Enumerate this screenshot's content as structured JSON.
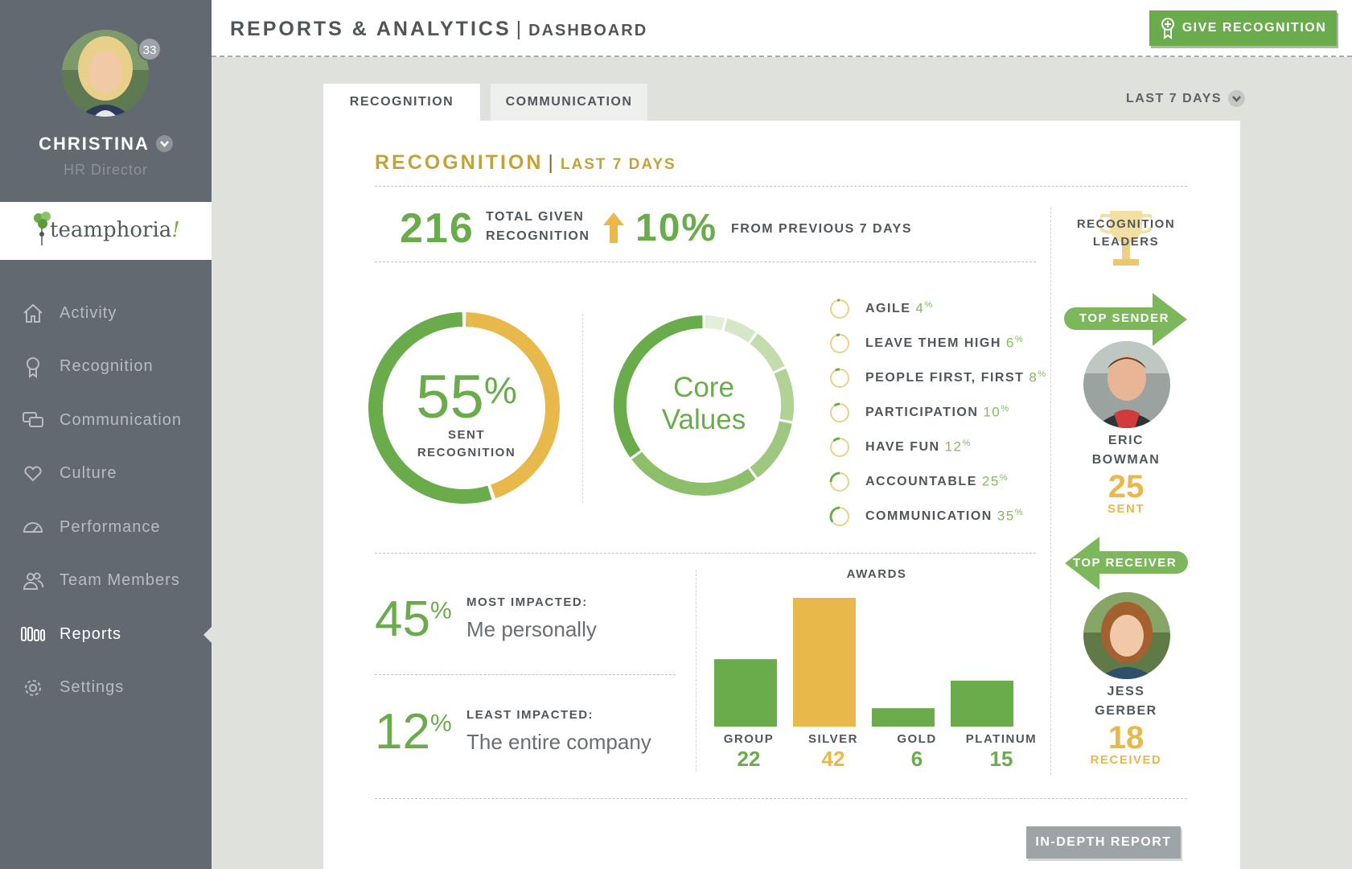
{
  "user": {
    "name": "CHRISTINA",
    "role": "HR Director",
    "notifications": "33"
  },
  "logo": {
    "text": "teamphoria",
    "bang": "!"
  },
  "nav": [
    {
      "label": "Activity",
      "icon": "home-icon"
    },
    {
      "label": "Recognition",
      "icon": "ribbon-icon"
    },
    {
      "label": "Communication",
      "icon": "chat-icon"
    },
    {
      "label": "Culture",
      "icon": "heart-icon"
    },
    {
      "label": "Performance",
      "icon": "gauge-icon"
    },
    {
      "label": "Team Members",
      "icon": "people-icon"
    },
    {
      "label": "Reports",
      "icon": "bars-icon",
      "active": true
    },
    {
      "label": "Settings",
      "icon": "gear-icon"
    }
  ],
  "header": {
    "title": "REPORTS & ANALYTICS",
    "separator": "|",
    "subtitle": "DASHBOARD",
    "give_button": "GIVE RECOGNITION"
  },
  "tabs": [
    {
      "label": "RECOGNITION",
      "active": true
    },
    {
      "label": "COMMUNICATION"
    }
  ],
  "period": {
    "label": "LAST 7 DAYS"
  },
  "section": {
    "title": "RECOGNITION",
    "separator": "|",
    "subtitle": "LAST 7 DAYS"
  },
  "summary": {
    "total": "216",
    "total_label_1": "TOTAL GIVEN",
    "total_label_2": "RECOGNITION",
    "change": "10%",
    "change_label": "FROM PREVIOUS 7 DAYS"
  },
  "sent_donut": {
    "pct_num": "55",
    "pct_sign": "%",
    "label_1": "SENT",
    "label_2": "RECOGNITION",
    "sent_fraction": 0.55,
    "colors": {
      "sent": "#6aab4b",
      "received": "#e8b84a"
    }
  },
  "core_values": {
    "center_1": "Core",
    "center_2": "Values",
    "items": [
      {
        "label": "AGILE",
        "pct": "4",
        "value": 4
      },
      {
        "label": "LEAVE THEM HIGH",
        "pct": "6",
        "value": 6
      },
      {
        "label": "PEOPLE FIRST, FIRST",
        "pct": "8",
        "value": 8
      },
      {
        "label": "PARTICIPATION",
        "pct": "10",
        "value": 10
      },
      {
        "label": "HAVE FUN",
        "pct": "12",
        "value": 12
      },
      {
        "label": "ACCOUNTABLE",
        "pct": "25",
        "value": 25
      },
      {
        "label": "COMMUNICATION",
        "pct": "35",
        "value": 35
      }
    ],
    "pct_suffix": "%"
  },
  "impact": {
    "most": {
      "pct": "45",
      "head": "MOST IMPACTED:",
      "value": "Me personally"
    },
    "least": {
      "pct": "12",
      "head": "LEAST IMPACTED:",
      "value": "The entire company"
    },
    "pct_sign": "%"
  },
  "chart_data": {
    "type": "bar",
    "title": "AWARDS",
    "categories": [
      "GROUP",
      "SILVER",
      "GOLD",
      "PLATINUM"
    ],
    "values": [
      22,
      42,
      6,
      15
    ],
    "colors": [
      "#6aab4b",
      "#e8b84a",
      "#6aab4b",
      "#6aab4b"
    ],
    "value_labels": [
      "22",
      "42",
      "6",
      "15"
    ]
  },
  "leaders": {
    "title_1": "RECOGNITION",
    "title_2": "LEADERS",
    "top_sender": {
      "tag": "TOP SENDER",
      "first": "ERIC",
      "last": "BOWMAN",
      "count": "25",
      "unit": "SENT"
    },
    "top_receiver": {
      "tag": "TOP RECEIVER",
      "first": "JESS",
      "last": "GERBER",
      "count": "18",
      "unit": "RECEIVED"
    }
  },
  "footer": {
    "button": "IN-DEPTH REPORT"
  }
}
